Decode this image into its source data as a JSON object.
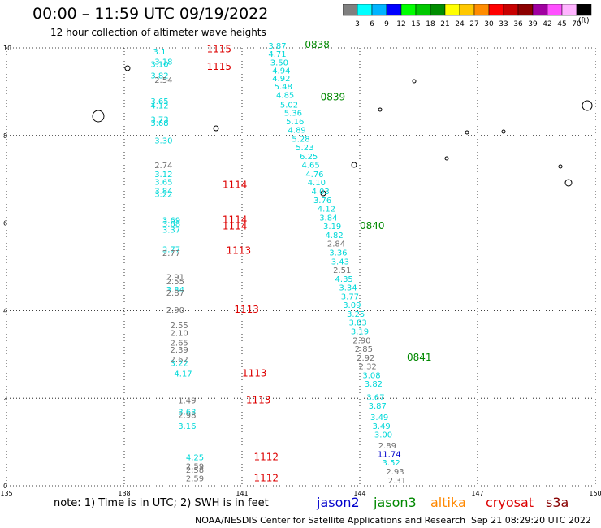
{
  "header": {
    "title": "00:00 – 11:59 UTC 09/19/2022",
    "subtitle": "12 hour collection of altimeter wave heights"
  },
  "colorbar": {
    "unit": "(ft)",
    "labels": [
      "3",
      "6",
      "9",
      "12",
      "15",
      "18",
      "21",
      "24",
      "27",
      "30",
      "33",
      "36",
      "39",
      "42",
      "45",
      "70"
    ],
    "colors": [
      "#808080",
      "#00ffff",
      "#00b4ff",
      "#0000ff",
      "#00ff00",
      "#00c800",
      "#008c00",
      "#ffff00",
      "#ffc800",
      "#ff8c00",
      "#ff0000",
      "#c80000",
      "#8c0000",
      "#a000a0",
      "#ff50ff",
      "#ffb4ff",
      "#000000"
    ]
  },
  "footer": {
    "note": "note: 1) Time is in UTC; 2) SWH is in feet",
    "legend": [
      {
        "name": "jason2",
        "color": "#0000cc"
      },
      {
        "name": "jason3",
        "color": "#008800"
      },
      {
        "name": "altika",
        "color": "#ff8800"
      },
      {
        "name": "cryosat",
        "color": "#dd0000"
      },
      {
        "name": "s3a",
        "color": "#880000"
      }
    ],
    "credit": "NOAA/NESDIS Center for Satellite Applications and Research",
    "timestamp": "Sep 21 08:29:20 UTC 2022"
  },
  "chart_data": {
    "type": "scatter",
    "xlim": [
      135,
      150
    ],
    "ylim": [
      0,
      10
    ],
    "xticks": [
      "135",
      "138",
      "141",
      "144",
      "147",
      "150"
    ],
    "yticks": [
      "0",
      "2",
      "4",
      "6",
      "8",
      "10"
    ],
    "grid": true,
    "series": [
      {
        "name": "cryosat",
        "color": "#dd0000",
        "points": [
          {
            "x": 138.9,
            "y": 9.85,
            "v": "3.1"
          },
          {
            "x": 139.0,
            "y": 9.62,
            "v": "3.18"
          },
          {
            "x": 138.9,
            "y": 9.56,
            "v": "3.10"
          },
          {
            "x": 138.9,
            "y": 9.3,
            "v": "3.82"
          },
          {
            "x": 139.0,
            "y": 9.2,
            "v": "2.54"
          },
          {
            "x": 138.9,
            "y": 8.72,
            "v": "3.65"
          },
          {
            "x": 138.9,
            "y": 8.62,
            "v": "4.12"
          },
          {
            "x": 138.9,
            "y": 8.3,
            "v": "3.73"
          },
          {
            "x": 138.9,
            "y": 8.22,
            "v": "3.68"
          },
          {
            "x": 139.0,
            "y": 7.82,
            "v": "3.30"
          },
          {
            "x": 139.0,
            "y": 7.25,
            "v": "2.74"
          },
          {
            "x": 139.0,
            "y": 7.05,
            "v": "3.12"
          },
          {
            "x": 139.0,
            "y": 6.87,
            "v": "3.65"
          },
          {
            "x": 139.0,
            "y": 6.67,
            "v": "3.84"
          },
          {
            "x": 139.0,
            "y": 6.6,
            "v": "3.22"
          },
          {
            "x": 139.2,
            "y": 6.0,
            "v": "3.69"
          },
          {
            "x": 139.2,
            "y": 5.92,
            "v": "3.68"
          },
          {
            "x": 139.2,
            "y": 5.78,
            "v": "3.37"
          },
          {
            "x": 139.2,
            "y": 5.33,
            "v": "3.77"
          },
          {
            "x": 139.2,
            "y": 5.25,
            "v": "2.77"
          },
          {
            "x": 139.3,
            "y": 4.7,
            "v": "2.91"
          },
          {
            "x": 139.3,
            "y": 4.6,
            "v": "2.55"
          },
          {
            "x": 139.3,
            "y": 4.42,
            "v": "3.84"
          },
          {
            "x": 139.3,
            "y": 4.34,
            "v": "2.87"
          },
          {
            "x": 139.3,
            "y": 3.95,
            "v": "2.90"
          },
          {
            "x": 139.4,
            "y": 3.6,
            "v": "2.55"
          },
          {
            "x": 139.4,
            "y": 3.42,
            "v": "2.10"
          },
          {
            "x": 139.4,
            "y": 3.2,
            "v": "2.65"
          },
          {
            "x": 139.4,
            "y": 3.04,
            "v": "2.39"
          },
          {
            "x": 139.4,
            "y": 2.82,
            "v": "2.62"
          },
          {
            "x": 139.4,
            "y": 2.74,
            "v": "3.22"
          },
          {
            "x": 139.5,
            "y": 2.5,
            "v": "4.17"
          },
          {
            "x": 139.6,
            "y": 1.88,
            "v": "1.49"
          },
          {
            "x": 139.6,
            "y": 1.62,
            "v": "3.63"
          },
          {
            "x": 139.6,
            "y": 1.55,
            "v": "2.98"
          },
          {
            "x": 139.6,
            "y": 1.3,
            "v": "3.16"
          },
          {
            "x": 139.8,
            "y": 0.58,
            "v": "4.25"
          },
          {
            "x": 139.8,
            "y": 0.38,
            "v": "2.59"
          },
          {
            "x": 139.8,
            "y": 0.3,
            "v": "2.58"
          },
          {
            "x": 139.8,
            "y": 0.1,
            "v": "2.59"
          }
        ],
        "pass_labels": [
          {
            "x": 140.1,
            "y": 9.9,
            "t": "1115"
          },
          {
            "x": 140.1,
            "y": 9.5,
            "t": "1115"
          },
          {
            "x": 140.5,
            "y": 6.8,
            "t": "1114"
          },
          {
            "x": 140.5,
            "y": 6.0,
            "t": "1114"
          },
          {
            "x": 140.5,
            "y": 5.85,
            "t": "1114"
          },
          {
            "x": 140.6,
            "y": 5.3,
            "t": "1113"
          },
          {
            "x": 140.8,
            "y": 3.95,
            "t": "1113"
          },
          {
            "x": 141.0,
            "y": 2.5,
            "t": "1113"
          },
          {
            "x": 141.1,
            "y": 1.88,
            "t": "1113"
          },
          {
            "x": 141.3,
            "y": 0.58,
            "t": "1112"
          },
          {
            "x": 141.3,
            "y": 0.1,
            "t": "1112"
          }
        ]
      },
      {
        "name": "jason3",
        "color": "#008800",
        "points": [
          {
            "x": 141.9,
            "y": 9.98,
            "v": "3.87"
          },
          {
            "x": 141.9,
            "y": 9.8,
            "v": "4.71"
          },
          {
            "x": 141.95,
            "y": 9.6,
            "v": "3.50"
          },
          {
            "x": 142.0,
            "y": 9.42,
            "v": "4.94"
          },
          {
            "x": 142.0,
            "y": 9.24,
            "v": "4.92"
          },
          {
            "x": 142.05,
            "y": 9.05,
            "v": "5.48"
          },
          {
            "x": 142.1,
            "y": 8.86,
            "v": "4.85"
          },
          {
            "x": 142.2,
            "y": 8.64,
            "v": "5.02"
          },
          {
            "x": 142.3,
            "y": 8.45,
            "v": "5.36"
          },
          {
            "x": 142.35,
            "y": 8.26,
            "v": "5.16"
          },
          {
            "x": 142.4,
            "y": 8.06,
            "v": "4.89"
          },
          {
            "x": 142.5,
            "y": 7.86,
            "v": "5.28"
          },
          {
            "x": 142.6,
            "y": 7.66,
            "v": "5.23"
          },
          {
            "x": 142.7,
            "y": 7.46,
            "v": "6.25"
          },
          {
            "x": 142.75,
            "y": 7.26,
            "v": "4.65"
          },
          {
            "x": 142.85,
            "y": 7.05,
            "v": "4.76"
          },
          {
            "x": 142.9,
            "y": 6.86,
            "v": "4.10"
          },
          {
            "x": 143.0,
            "y": 6.66,
            "v": "4.03"
          },
          {
            "x": 143.05,
            "y": 6.46,
            "v": "3.76"
          },
          {
            "x": 143.15,
            "y": 6.26,
            "v": "4.12"
          },
          {
            "x": 143.2,
            "y": 6.06,
            "v": "3.84"
          },
          {
            "x": 143.3,
            "y": 5.86,
            "v": "3.19"
          },
          {
            "x": 143.35,
            "y": 5.66,
            "v": "4.82"
          },
          {
            "x": 143.4,
            "y": 5.46,
            "v": "2.84"
          },
          {
            "x": 143.45,
            "y": 5.26,
            "v": "3.36"
          },
          {
            "x": 143.5,
            "y": 5.06,
            "v": "3.43"
          },
          {
            "x": 143.55,
            "y": 4.86,
            "v": "2.51"
          },
          {
            "x": 143.6,
            "y": 4.66,
            "v": "4.35"
          },
          {
            "x": 143.7,
            "y": 4.46,
            "v": "3.34"
          },
          {
            "x": 143.75,
            "y": 4.26,
            "v": "3.77"
          },
          {
            "x": 143.8,
            "y": 4.06,
            "v": "3.09"
          },
          {
            "x": 143.9,
            "y": 3.86,
            "v": "3.25"
          },
          {
            "x": 143.95,
            "y": 3.66,
            "v": "3.83"
          },
          {
            "x": 144.0,
            "y": 3.46,
            "v": "3.19"
          },
          {
            "x": 144.05,
            "y": 3.26,
            "v": "2.90"
          },
          {
            "x": 144.1,
            "y": 3.06,
            "v": "2.85"
          },
          {
            "x": 144.15,
            "y": 2.86,
            "v": "2.92"
          },
          {
            "x": 144.2,
            "y": 2.66,
            "v": "2.32"
          },
          {
            "x": 144.3,
            "y": 2.46,
            "v": "3.08"
          },
          {
            "x": 144.35,
            "y": 2.26,
            "v": "3.82"
          },
          {
            "x": 144.4,
            "y": 1.96,
            "v": "3.67"
          },
          {
            "x": 144.45,
            "y": 1.76,
            "v": "3.87"
          },
          {
            "x": 144.5,
            "y": 1.5,
            "v": "3.49"
          },
          {
            "x": 144.55,
            "y": 1.3,
            "v": "3.49"
          },
          {
            "x": 144.6,
            "y": 1.1,
            "v": "3.00"
          },
          {
            "x": 144.7,
            "y": 0.85,
            "v": "2.89"
          },
          {
            "x": 144.75,
            "y": 0.66,
            "v": "11.74"
          },
          {
            "x": 144.8,
            "y": 0.46,
            "v": "3.52"
          },
          {
            "x": 144.9,
            "y": 0.26,
            "v": "2.93"
          },
          {
            "x": 144.95,
            "y": 0.06,
            "v": "2.31"
          }
        ],
        "pass_labels": [
          {
            "x": 142.6,
            "y": 10.0,
            "t": "0838"
          },
          {
            "x": 143.0,
            "y": 8.8,
            "t": "0839"
          },
          {
            "x": 144.0,
            "y": 5.86,
            "t": "0840"
          },
          {
            "x": 145.2,
            "y": 2.86,
            "t": "0841"
          }
        ]
      }
    ]
  }
}
